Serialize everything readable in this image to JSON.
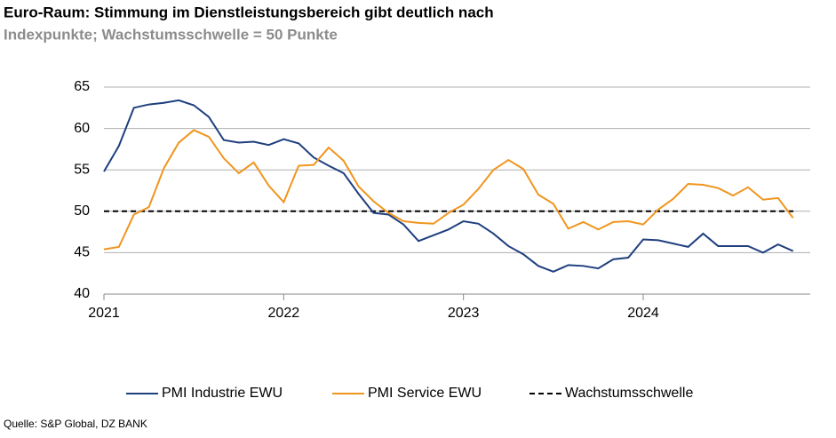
{
  "chart_data": {
    "type": "line",
    "title": "Euro-Raum: Stimmung im Dienstleistungsbereich gibt deutlich nach",
    "subtitle": "Indexpunkte; Wachstumsschwelle = 50 Punkte",
    "source": "Quelle: S&P Global, DZ BANK",
    "categories": [
      "2021",
      null,
      null,
      null,
      null,
      null,
      null,
      null,
      null,
      null,
      null,
      null,
      "2022",
      null,
      null,
      null,
      null,
      null,
      null,
      null,
      null,
      null,
      null,
      null,
      "2023",
      null,
      null,
      null,
      null,
      null,
      null,
      null,
      null,
      null,
      null,
      null,
      "2024",
      null,
      null,
      null,
      null,
      null,
      null,
      null,
      null,
      null,
      null
    ],
    "series": [
      {
        "name": "PMI Industrie EWU",
        "color": "#1f3f7f",
        "values": [
          54.8,
          57.9,
          62.5,
          62.9,
          63.1,
          63.4,
          62.8,
          61.4,
          58.6,
          58.3,
          58.4,
          58.0,
          58.7,
          58.2,
          56.5,
          55.5,
          54.6,
          52.1,
          49.8,
          49.6,
          48.4,
          46.4,
          47.1,
          47.8,
          48.8,
          48.5,
          47.3,
          45.8,
          44.8,
          43.4,
          42.7,
          43.5,
          43.4,
          43.1,
          44.2,
          44.4,
          46.6,
          46.5,
          46.1,
          45.7,
          47.3,
          45.8,
          45.8,
          45.8,
          45.0,
          46.0,
          45.2
        ]
      },
      {
        "name": "PMI Service EWU",
        "color": "#f0951e",
        "values": [
          45.4,
          45.7,
          49.6,
          50.5,
          55.2,
          58.3,
          59.8,
          59.0,
          56.4,
          54.6,
          55.9,
          53.1,
          51.1,
          55.5,
          55.6,
          57.7,
          56.1,
          53.0,
          51.2,
          49.8,
          48.8,
          48.6,
          48.5,
          49.8,
          50.8,
          52.7,
          55.0,
          56.2,
          55.1,
          52.0,
          50.9,
          47.9,
          48.7,
          47.8,
          48.7,
          48.8,
          48.4,
          50.2,
          51.5,
          53.3,
          53.2,
          52.8,
          51.9,
          52.9,
          51.4,
          51.6,
          49.2
        ]
      }
    ],
    "reference_line": {
      "name": "Wachstumsschwelle",
      "value": 50,
      "color": "#000000",
      "dashed": true
    },
    "ylim": [
      40,
      65
    ],
    "yticks": [
      40,
      45,
      50,
      55,
      60,
      65
    ],
    "grid": true,
    "legend": "bottom"
  }
}
